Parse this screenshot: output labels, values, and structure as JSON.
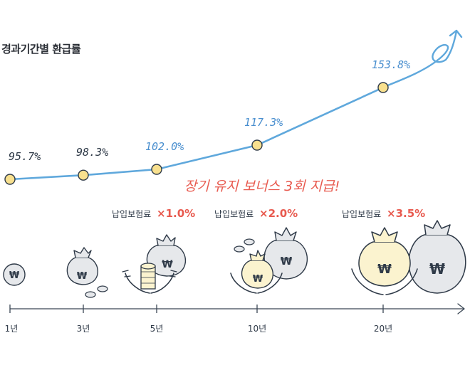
{
  "title": "경과기간별 환급률",
  "bonus_text": "장기 유지 보너스 3회 지급!",
  "premium_label": "납입보험료",
  "multipliers": [
    "×1.0%",
    "×2.0%",
    "×3.5%"
  ],
  "currency_symbol": "₩",
  "colors": {
    "line": "#5fa8dc",
    "marker_fill": "#f8e08e",
    "marker_stroke": "#2f3a48",
    "dark_label": "#2f3a48",
    "blue_label": "#4a8fcf",
    "accent": "#e85a4f",
    "axis": "#3a4654",
    "bag_light": "#fbf3cf",
    "bag_gray": "#e6e8eb"
  },
  "chart_data": {
    "type": "line",
    "title": "경과기간별 환급률",
    "categories": [
      "1년",
      "3년",
      "5년",
      "10년",
      "20년"
    ],
    "values": [
      95.7,
      98.3,
      102.0,
      117.3,
      153.8
    ],
    "data_labels": [
      "95.7%",
      "98.3%",
      "102.0%",
      "117.3%",
      "153.8%"
    ],
    "unit": "%",
    "xlabel": "",
    "ylabel": "",
    "grid": false,
    "legend": "none"
  }
}
